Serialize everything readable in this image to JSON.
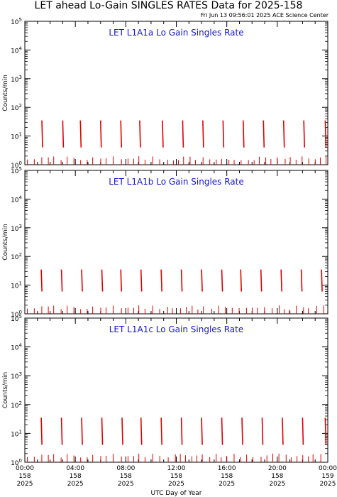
{
  "page": {
    "title": "LET ahead Lo-Gain SINGLES RATES Data for 2025-158",
    "timestamp": "Fri Jun 13 09:56:01 2025 ACE Science Center",
    "x_axis_label": "UTC Day of Year"
  },
  "colors": {
    "data": "#e00000",
    "panel_title": "#1515d0",
    "axes": "#000000"
  },
  "chart_data": [
    {
      "type": "line",
      "title": "LET L1A1a Lo Gain Singles Rate",
      "ylabel": "Counts/min",
      "yscale": "log",
      "ylim": [
        1,
        100000
      ],
      "yticks": [
        {
          "value": 1,
          "base": "10",
          "exp": "0"
        },
        {
          "value": 10,
          "base": "10",
          "exp": "1"
        },
        {
          "value": 100,
          "base": "10",
          "exp": "2"
        },
        {
          "value": 1000,
          "base": "10",
          "exp": "3"
        },
        {
          "value": 10000,
          "base": "10",
          "exp": "4"
        },
        {
          "value": 100000,
          "base": "10",
          "exp": "5"
        }
      ],
      "x_hours_range": [
        0,
        24
      ],
      "x": [
        1.35,
        3.0,
        4.4,
        6.0,
        7.6,
        9.1,
        10.9,
        12.5,
        14.1,
        15.7,
        17.3,
        18.9,
        20.5,
        22.1,
        23.8
      ],
      "values": [
        35,
        35,
        35,
        35,
        35,
        35,
        35,
        35,
        35,
        35,
        35,
        35,
        35,
        35,
        35
      ]
    },
    {
      "type": "line",
      "title": "LET L1A1b Lo Gain Singles Rate",
      "ylabel": "Counts/min",
      "yscale": "log",
      "ylim": [
        1,
        100000
      ],
      "yticks": [
        {
          "value": 1,
          "base": "10",
          "exp": "0"
        },
        {
          "value": 10,
          "base": "10",
          "exp": "1"
        },
        {
          "value": 100,
          "base": "10",
          "exp": "2"
        },
        {
          "value": 1000,
          "base": "10",
          "exp": "3"
        },
        {
          "value": 10000,
          "base": "10",
          "exp": "4"
        },
        {
          "value": 100000,
          "base": "10",
          "exp": "5"
        }
      ],
      "x_hours_range": [
        0,
        24
      ],
      "x": [
        1.3,
        2.9,
        4.5,
        6.1,
        7.6,
        9.2,
        10.8,
        12.4,
        14.0,
        15.6,
        17.1,
        18.7,
        20.3,
        21.9,
        23.5
      ],
      "values": [
        35,
        35,
        35,
        35,
        35,
        35,
        35,
        35,
        35,
        35,
        35,
        35,
        35,
        35,
        35
      ]
    },
    {
      "type": "line",
      "title": "LET L1A1c Lo Gain Singles Rate",
      "ylabel": "Counts/min",
      "yscale": "log",
      "ylim": [
        1,
        100000
      ],
      "yticks": [
        {
          "value": 1,
          "base": "10",
          "exp": "0"
        },
        {
          "value": 10,
          "base": "10",
          "exp": "1"
        },
        {
          "value": 100,
          "base": "10",
          "exp": "2"
        },
        {
          "value": 1000,
          "base": "10",
          "exp": "3"
        },
        {
          "value": 10000,
          "base": "10",
          "exp": "4"
        },
        {
          "value": 100000,
          "base": "10",
          "exp": "5"
        }
      ],
      "x_hours_range": [
        0,
        24
      ],
      "x": [
        1.3,
        2.9,
        4.5,
        6.1,
        7.7,
        9.2,
        10.8,
        12.4,
        14.0,
        15.6,
        17.2,
        18.8,
        20.4,
        22.0,
        23.8
      ],
      "values": [
        35,
        35,
        35,
        35,
        35,
        35,
        35,
        35,
        35,
        35,
        35,
        35,
        35,
        35,
        35
      ]
    }
  ],
  "x_ticks": [
    {
      "hours": 0,
      "time": "00:00",
      "day": "158",
      "year": "2025"
    },
    {
      "hours": 4,
      "time": "04:00",
      "day": "158",
      "year": "2025"
    },
    {
      "hours": 8,
      "time": "08:00",
      "day": "158",
      "year": "2025"
    },
    {
      "hours": 12,
      "time": "12:00",
      "day": "158",
      "year": "2025"
    },
    {
      "hours": 16,
      "time": "16:00",
      "day": "158",
      "year": "2025"
    },
    {
      "hours": 20,
      "time": "20:00",
      "day": "158",
      "year": "2025"
    },
    {
      "hours": 24,
      "time": "00:00",
      "day": "159",
      "year": "2025"
    }
  ]
}
